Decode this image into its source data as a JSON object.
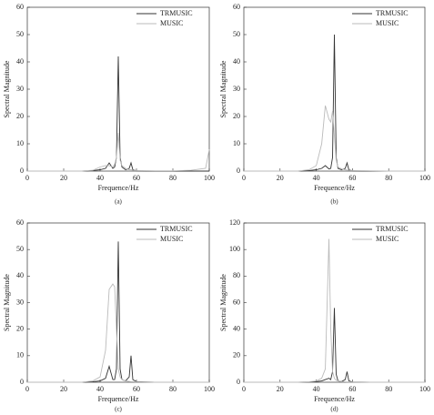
{
  "chart_data": [
    {
      "type": "line",
      "caption": "(a)",
      "x_label": "Frequence/Hz",
      "y_label": "Spectral Magnitude",
      "x": [
        0,
        10,
        20,
        30,
        36,
        40,
        43,
        45,
        47,
        48,
        49,
        50,
        51,
        52,
        54,
        56,
        57,
        58,
        60,
        70,
        80,
        90,
        98,
        100
      ],
      "series": [
        {
          "name": "TRMUSIC",
          "color": "#333333",
          "values": [
            0,
            0,
            0,
            0,
            0.2,
            0.5,
            1,
            3,
            1,
            1.5,
            5,
            42,
            5,
            1.5,
            0.5,
            1,
            3,
            0.5,
            0.1,
            0,
            0,
            0,
            0,
            0
          ]
        },
        {
          "name": "MUSIC",
          "color": "#bbbbbb",
          "values": [
            0,
            0,
            0,
            0,
            0.3,
            1.5,
            2,
            2,
            1.5,
            2.5,
            5,
            14,
            4,
            2,
            1,
            0.5,
            0.5,
            0.3,
            0.2,
            0.1,
            0.1,
            0.3,
            1,
            8
          ]
        }
      ],
      "xlim": [
        0,
        100
      ],
      "xticks": [
        0,
        20,
        40,
        60,
        80,
        100
      ],
      "ylim": [
        0,
        60
      ],
      "yticks": [
        0,
        10,
        20,
        30,
        40,
        50,
        60
      ]
    },
    {
      "type": "line",
      "caption": "(b)",
      "x_label": "Frequence/Hz",
      "y_label": "Spectral Magnitude",
      "x": [
        0,
        10,
        20,
        30,
        36,
        40,
        43,
        45,
        47,
        48,
        49,
        50,
        51,
        52,
        54,
        56,
        57,
        58,
        60,
        70,
        80,
        90,
        98,
        100
      ],
      "series": [
        {
          "name": "TRMUSIC",
          "color": "#333333",
          "values": [
            0,
            0,
            0,
            0,
            0.2,
            0.5,
            1,
            2,
            0.8,
            1,
            5,
            50,
            5,
            1,
            0.5,
            1,
            3,
            0.5,
            0.1,
            0,
            0,
            0,
            0,
            0
          ]
        },
        {
          "name": "MUSIC",
          "color": "#bbbbbb",
          "values": [
            0,
            0,
            0,
            0,
            0.5,
            2,
            10,
            24,
            19,
            18,
            22,
            13,
            4,
            1.5,
            0.8,
            0.5,
            0.4,
            0.3,
            0.2,
            0.1,
            0,
            0,
            0,
            0
          ]
        }
      ],
      "xlim": [
        0,
        100
      ],
      "xticks": [
        0,
        20,
        40,
        60,
        80,
        100
      ],
      "ylim": [
        0,
        60
      ],
      "yticks": [
        0,
        10,
        20,
        30,
        40,
        50,
        60
      ]
    },
    {
      "type": "line",
      "caption": "(c)",
      "x_label": "Frequence/Hz",
      "y_label": "Spectral Magnitude",
      "x": [
        0,
        10,
        20,
        30,
        36,
        40,
        43,
        45,
        47,
        48,
        49,
        50,
        51,
        52,
        54,
        56,
        57,
        58,
        60,
        70,
        80,
        90,
        98,
        100
      ],
      "series": [
        {
          "name": "TRMUSIC",
          "color": "#333333",
          "values": [
            0,
            0,
            0,
            0,
            0.2,
            0.5,
            1.5,
            6,
            1,
            1,
            5,
            53,
            5,
            1,
            0.5,
            2,
            10,
            1,
            0.2,
            0,
            0,
            0,
            0,
            0
          ]
        },
        {
          "name": "MUSIC",
          "color": "#bbbbbb",
          "values": [
            0,
            0,
            0,
            0,
            0.5,
            2,
            12,
            35,
            37,
            36,
            20,
            5,
            2,
            1,
            0.5,
            0.3,
            0.2,
            0.2,
            0.1,
            0,
            0,
            0,
            0,
            0
          ]
        }
      ],
      "xlim": [
        0,
        100
      ],
      "xticks": [
        0,
        20,
        40,
        60,
        80,
        100
      ],
      "ylim": [
        0,
        60
      ],
      "yticks": [
        0,
        10,
        20,
        30,
        40,
        50,
        60
      ]
    },
    {
      "type": "line",
      "caption": "(d)",
      "x_label": "Frequence/Hz",
      "y_label": "Spectral Magnitude",
      "x": [
        0,
        10,
        20,
        30,
        36,
        40,
        43,
        45,
        47,
        48,
        49,
        50,
        51,
        52,
        54,
        56,
        57,
        58,
        60,
        70,
        80,
        90,
        98,
        100
      ],
      "series": [
        {
          "name": "TRMUSIC",
          "color": "#333333",
          "values": [
            0,
            0,
            0,
            0,
            0.2,
            0.5,
            1,
            2,
            3,
            2,
            8,
            56,
            6,
            1,
            0.5,
            2,
            8,
            1,
            0.2,
            0,
            0,
            0,
            0,
            0
          ]
        },
        {
          "name": "MUSIC",
          "color": "#bbbbbb",
          "values": [
            0,
            0,
            0,
            0,
            0.3,
            1,
            3,
            10,
            108,
            40,
            8,
            3,
            1.5,
            1,
            0.5,
            0.3,
            0.2,
            0.2,
            0.1,
            0,
            0,
            0,
            0,
            0
          ]
        }
      ],
      "xlim": [
        0,
        100
      ],
      "xticks": [
        0,
        20,
        40,
        60,
        80,
        100
      ],
      "ylim": [
        0,
        120
      ],
      "yticks": [
        0,
        20,
        40,
        60,
        80,
        100,
        120
      ]
    }
  ]
}
